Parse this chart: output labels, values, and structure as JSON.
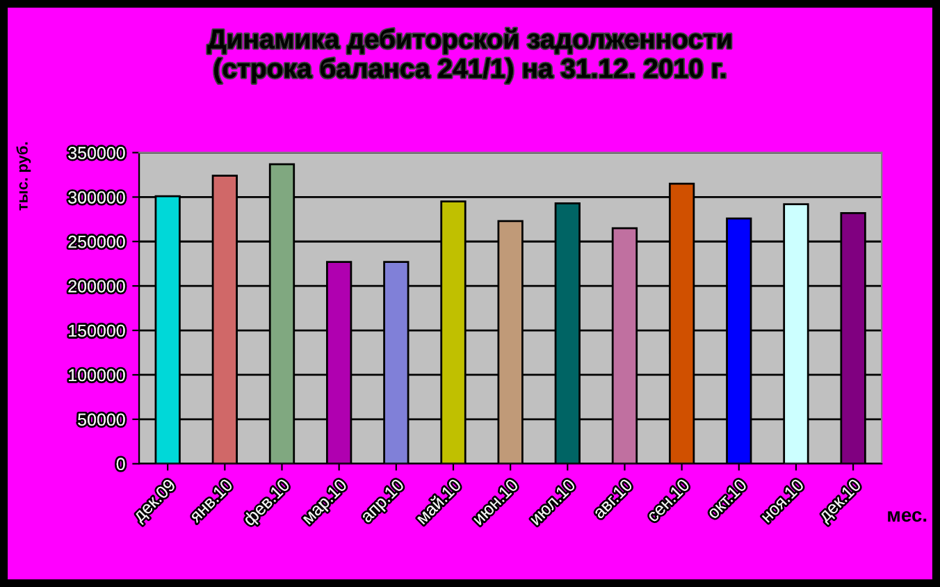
{
  "chart_data": {
    "type": "bar",
    "title": "Динамика дебиторской задолженности\n(строка баланса 241/1) на 31.12. 2010 г.",
    "xlabel": "мес.",
    "ylabel": "тыс. руб.",
    "categories": [
      "дек.09",
      "янв.10",
      "фев.10",
      "мар.10",
      "апр.10",
      "май.10",
      "июн.10",
      "июл.10",
      "авг.10",
      "сен.10",
      "окт.10",
      "ноя.10",
      "дек.10"
    ],
    "values": [
      301000,
      324000,
      337000,
      227000,
      227000,
      295000,
      273000,
      293000,
      265000,
      315000,
      276000,
      292000,
      282000
    ],
    "colors": [
      "#00d8d8",
      "#d06868",
      "#80a880",
      "#b000b0",
      "#8080d8",
      "#c0c000",
      "#c09a78",
      "#006464",
      "#c070a0",
      "#d05000",
      "#0000ff",
      "#ccffff",
      "#800080"
    ],
    "ylim": [
      0,
      350000
    ],
    "yticks": [
      0,
      50000,
      100000,
      150000,
      200000,
      250000,
      300000,
      350000
    ],
    "grid": "y"
  }
}
